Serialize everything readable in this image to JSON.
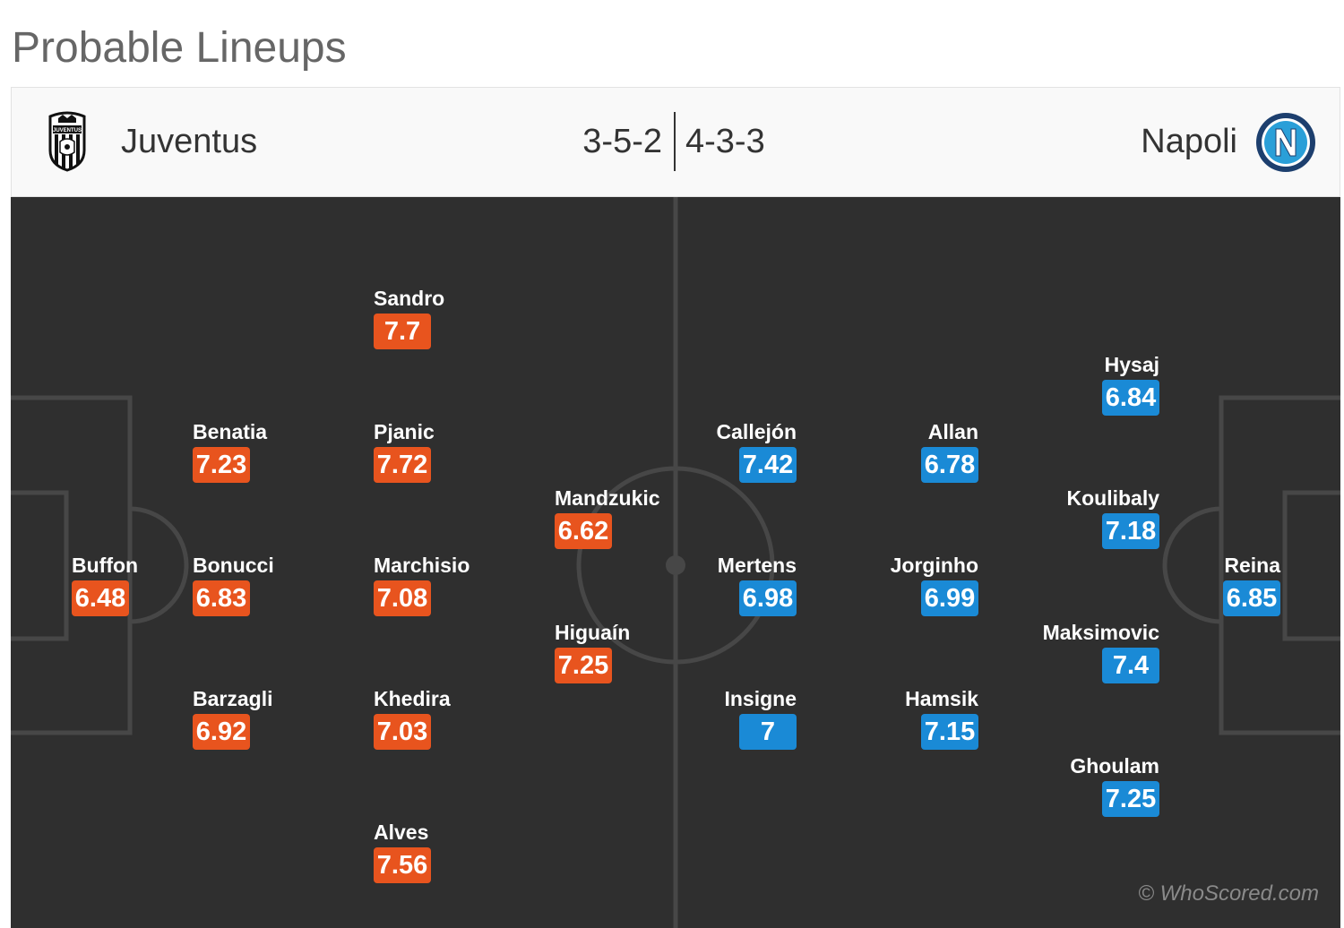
{
  "page": {
    "title": "Probable Lineups"
  },
  "home_team": {
    "name": "Juventus",
    "formation": "3-5-2",
    "logo_icon": "juventus-crest-icon",
    "rating_color": "#e8541e",
    "players": [
      {
        "name": "Buffon",
        "rating": "6.48"
      },
      {
        "name": "Benatia",
        "rating": "7.23"
      },
      {
        "name": "Bonucci",
        "rating": "6.83"
      },
      {
        "name": "Barzagli",
        "rating": "6.92"
      },
      {
        "name": "Sandro",
        "rating": "7.7"
      },
      {
        "name": "Pjanic",
        "rating": "7.72"
      },
      {
        "name": "Marchisio",
        "rating": "7.08"
      },
      {
        "name": "Khedira",
        "rating": "7.03"
      },
      {
        "name": "Alves",
        "rating": "7.56"
      },
      {
        "name": "Mandzukic",
        "rating": "6.62"
      },
      {
        "name": "Higuaín",
        "rating": "7.25"
      }
    ]
  },
  "away_team": {
    "name": "Napoli",
    "formation": "4-3-3",
    "logo_icon": "napoli-crest-icon",
    "rating_color": "#1a8ad6",
    "players": [
      {
        "name": "Callejón",
        "rating": "7.42"
      },
      {
        "name": "Mertens",
        "rating": "6.98"
      },
      {
        "name": "Insigne",
        "rating": "7"
      },
      {
        "name": "Allan",
        "rating": "6.78"
      },
      {
        "name": "Jorginho",
        "rating": "6.99"
      },
      {
        "name": "Hamsik",
        "rating": "7.15"
      },
      {
        "name": "Hysaj",
        "rating": "6.84"
      },
      {
        "name": "Koulibaly",
        "rating": "7.18"
      },
      {
        "name": "Maksimovic",
        "rating": "7.4"
      },
      {
        "name": "Ghoulam",
        "rating": "7.25"
      },
      {
        "name": "Reina",
        "rating": "6.85"
      }
    ]
  },
  "watermark": "© WhoScored.com"
}
